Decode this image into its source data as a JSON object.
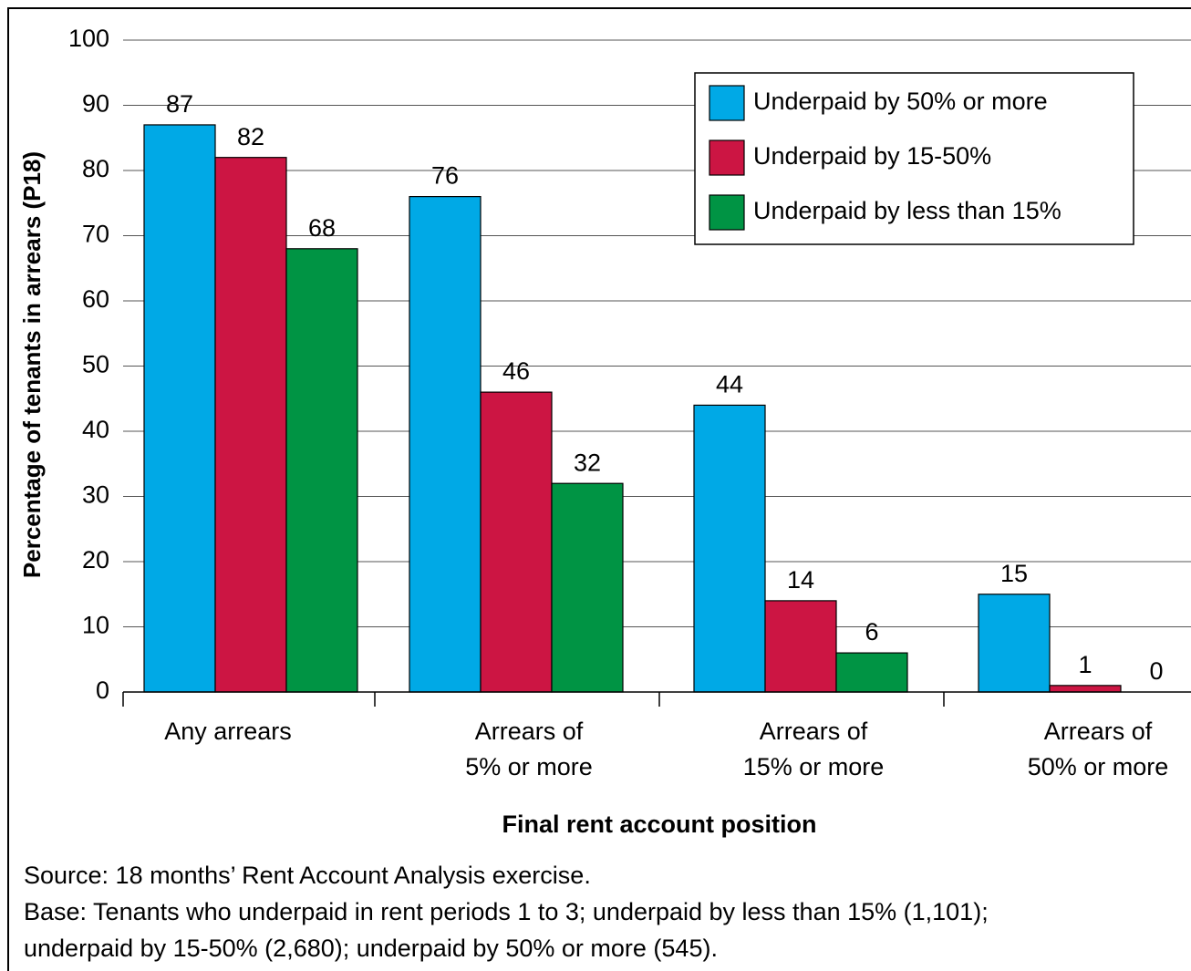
{
  "chart_data": {
    "type": "bar",
    "x_label": "Final rent account position",
    "y_label": "Percentage of tenants in arrears (P18)",
    "categories": [
      "Any arrears",
      "Arrears of\n5% or more",
      "Arrears of\n15% or more",
      "Arrears of\n50% or more"
    ],
    "series": [
      {
        "name": "Underpaid by 50% or more",
        "color": "#00a9e6",
        "values": [
          87,
          76,
          44,
          15
        ]
      },
      {
        "name": "Underpaid by 15-50%",
        "color": "#cc1543",
        "values": [
          82,
          46,
          14,
          1
        ]
      },
      {
        "name": "Underpaid by less than 15%",
        "color": "#009444",
        "values": [
          68,
          32,
          6,
          0
        ]
      }
    ],
    "ylim": [
      0,
      100
    ],
    "yticks": [
      0,
      10,
      20,
      30,
      40,
      50,
      60,
      70,
      80,
      90,
      100
    ],
    "grid": true,
    "legend": "upper right"
  },
  "notes": {
    "source": "Source: 18 months’ Rent Account Analysis exercise.",
    "base": "Base: Tenants who underpaid in rent periods 1 to 3; underpaid by less than 15% (1,101);\nunderpaid by 15-50% (2,680); underpaid by 50% or more (545)."
  }
}
